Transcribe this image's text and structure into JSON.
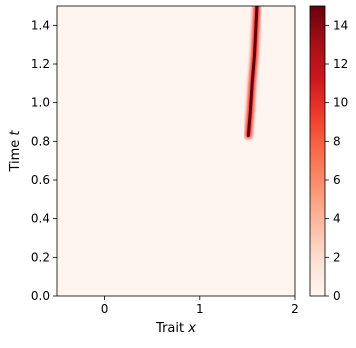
{
  "chart_data": {
    "type": "heatmap",
    "xlabel_prefix": "Trait ",
    "xlabel_var": "x",
    "ylabel_prefix": "Time ",
    "ylabel_var": "t",
    "xlim": [
      -0.5,
      2.0
    ],
    "ylim": [
      0.0,
      1.5
    ],
    "x_ticks": [
      0,
      1,
      2
    ],
    "x_tick_labels": [
      "0",
      "1",
      "2"
    ],
    "y_ticks": [
      0.0,
      0.2,
      0.4,
      0.6,
      0.8,
      1.0,
      1.2,
      1.4
    ],
    "y_tick_labels": [
      "0.0",
      "0.2",
      "0.4",
      "0.6",
      "0.8",
      "1.0",
      "1.2",
      "1.4"
    ],
    "colorbar": {
      "colormap": "Reds",
      "range": [
        0,
        15
      ],
      "ticks": [
        0,
        2,
        4,
        6,
        8,
        10,
        12,
        14
      ],
      "tick_labels": [
        "0",
        "2",
        "4",
        "6",
        "8",
        "10",
        "12",
        "14"
      ]
    },
    "background_density": 0.3,
    "faint_trace": {
      "x": 0.0,
      "t_start": 0.0,
      "t_end": 0.15,
      "peak": 0.8
    },
    "ridge": [
      {
        "t": 0.83,
        "x": 1.51,
        "density": 15
      },
      {
        "t": 0.95,
        "x": 1.53,
        "density": 15
      },
      {
        "t": 1.1,
        "x": 1.55,
        "density": 15
      },
      {
        "t": 1.25,
        "x": 1.575,
        "density": 15
      },
      {
        "t": 1.4,
        "x": 1.59,
        "density": 15
      },
      {
        "t": 1.5,
        "x": 1.6,
        "density": 15
      }
    ]
  }
}
